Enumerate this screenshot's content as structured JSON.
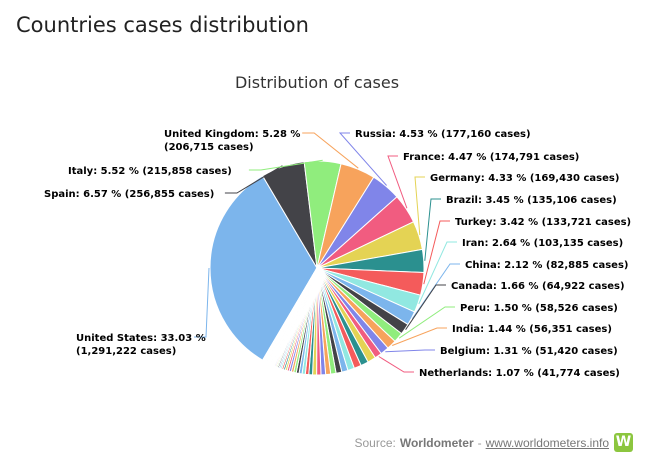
{
  "page": {
    "heading": "Countries cases distribution"
  },
  "source": {
    "prefix": "Source:",
    "name": "Worldometer",
    "separator": "-",
    "link": "www.worldometers.info",
    "logo_icon": "worldometer-logo-icon",
    "logo_letter": "W"
  },
  "chart_data": {
    "type": "pie",
    "title": "Distribution of cases",
    "label_format": "{name}: {pct} % ({cases} cases)",
    "slices": [
      {
        "name": "United States",
        "pct": 33.03,
        "cases": "1,291,222",
        "color": "#7cb5ec",
        "label": "United States: 33.03 %",
        "label2": "(1,291,222 cases)"
      },
      {
        "name": "Spain",
        "pct": 6.57,
        "cases": "256,855",
        "color": "#434348",
        "label": "Spain: 6.57 % (256,855 cases)"
      },
      {
        "name": "Italy",
        "pct": 5.52,
        "cases": "215,858",
        "color": "#90ed7d",
        "label": "Italy: 5.52 % (215,858 cases)"
      },
      {
        "name": "United Kingdom",
        "pct": 5.28,
        "cases": "206,715",
        "color": "#f7a35c",
        "label": "United Kingdom: 5.28 %",
        "label2": "(206,715 cases)"
      },
      {
        "name": "Russia",
        "pct": 4.53,
        "cases": "177,160",
        "color": "#8085e9",
        "label": "Russia: 4.53 % (177,160 cases)"
      },
      {
        "name": "France",
        "pct": 4.47,
        "cases": "174,791",
        "color": "#f15c80",
        "label": "France: 4.47 % (174,791 cases)"
      },
      {
        "name": "Germany",
        "pct": 4.33,
        "cases": "169,430",
        "color": "#e4d354",
        "label": "Germany: 4.33 % (169,430 cases)"
      },
      {
        "name": "Brazil",
        "pct": 3.45,
        "cases": "135,106",
        "color": "#2b908f",
        "label": "Brazil: 3.45 % (135,106 cases)"
      },
      {
        "name": "Turkey",
        "pct": 3.42,
        "cases": "133,721",
        "color": "#f45b5b",
        "label": "Turkey: 3.42 % (133,721 cases)"
      },
      {
        "name": "Iran",
        "pct": 2.64,
        "cases": "103,135",
        "color": "#91e8e1",
        "label": "Iran: 2.64 % (103,135 cases)"
      },
      {
        "name": "China",
        "pct": 2.12,
        "cases": "82,885",
        "color": "#7cb5ec",
        "label": "China: 2.12 % (82,885 cases)"
      },
      {
        "name": "Canada",
        "pct": 1.66,
        "cases": "64,922",
        "color": "#434348",
        "label": "Canada: 1.66 % (64,922 cases)"
      },
      {
        "name": "Peru",
        "pct": 1.5,
        "cases": "58,526",
        "color": "#90ed7d",
        "label": "Peru: 1.50 % (58,526 cases)"
      },
      {
        "name": "India",
        "pct": 1.44,
        "cases": "56,351",
        "color": "#f7a35c",
        "label": "India: 1.44 % (56,351 cases)"
      },
      {
        "name": "Belgium",
        "pct": 1.31,
        "cases": "51,420",
        "color": "#8085e9",
        "label": "Belgium: 1.31 % (51,420 cases)"
      },
      {
        "name": "Netherlands",
        "pct": 1.07,
        "cases": "41,774",
        "color": "#f15c80",
        "label": "Netherlands: 1.07 % (41,774 cases)"
      }
    ],
    "other_small_slices": {
      "total_pct": 17.65,
      "count": 60,
      "colors": [
        "#e4d354",
        "#2b908f",
        "#f45b5b",
        "#91e8e1",
        "#7cb5ec",
        "#434348",
        "#90ed7d",
        "#f7a35c",
        "#8085e9",
        "#f15c80"
      ]
    }
  }
}
